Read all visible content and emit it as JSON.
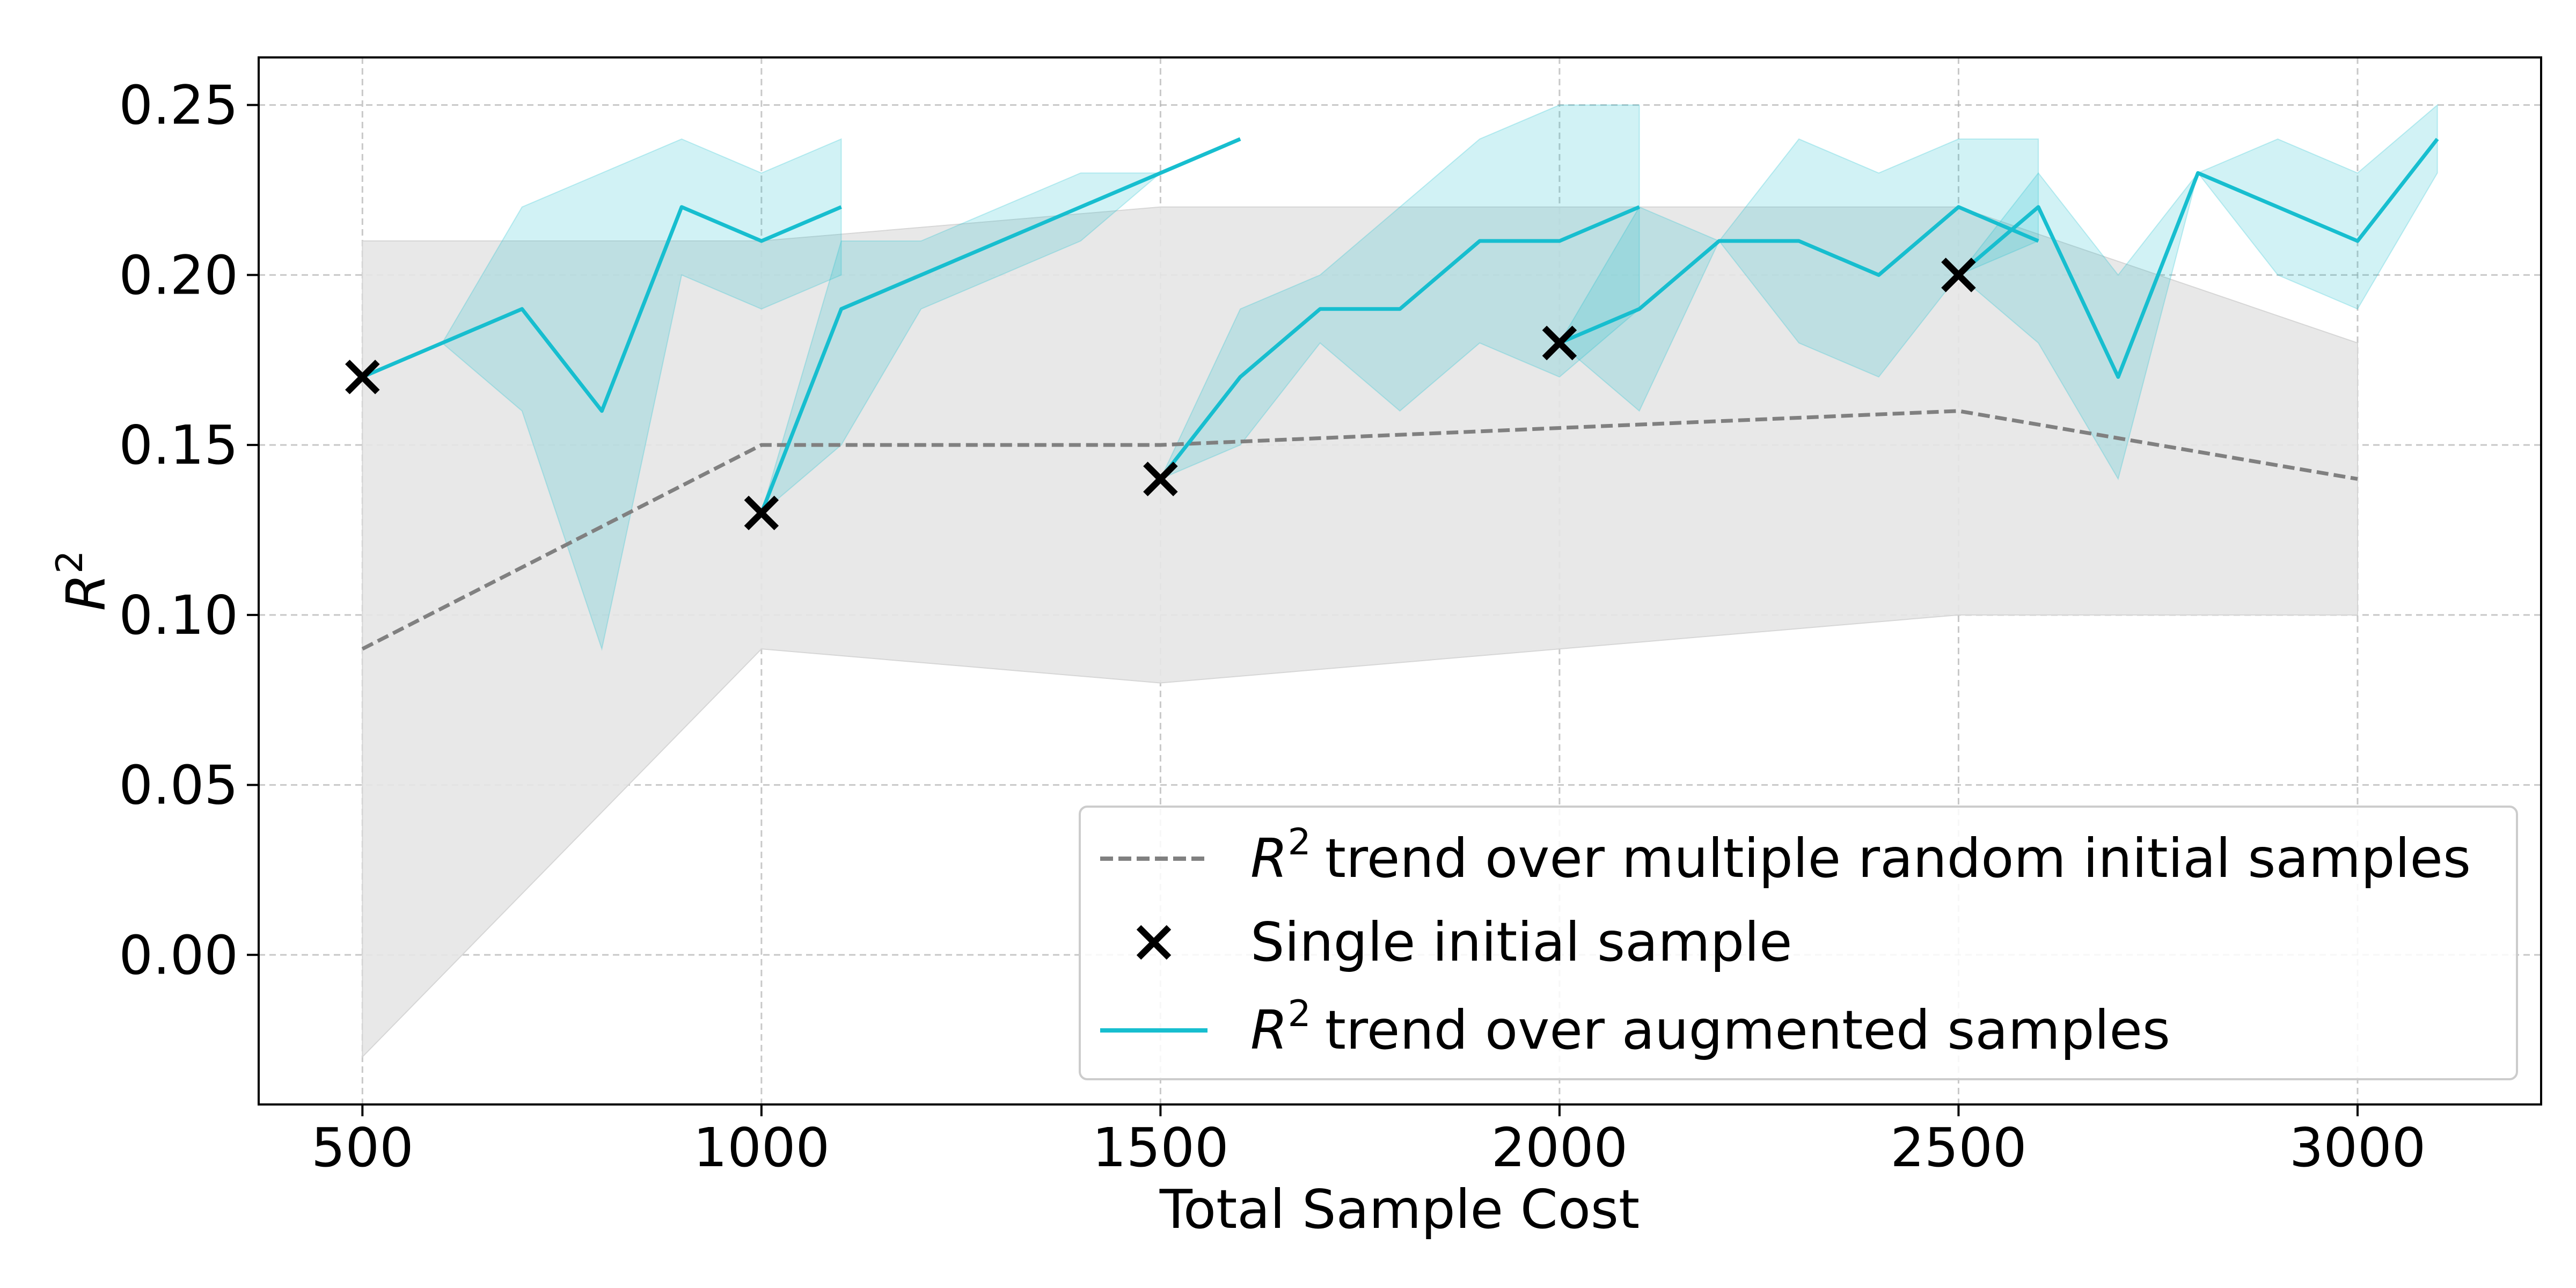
{
  "chart_data": {
    "type": "line",
    "xlabel": "Total Sample Cost",
    "ylabel": {
      "symbol": "R",
      "superscript": "2"
    },
    "xlim": [
      370,
      3230
    ],
    "ylim": [
      -0.044,
      0.264
    ],
    "xticks": [
      500,
      1000,
      1500,
      2000,
      2500,
      3000
    ],
    "yticks": [
      0.0,
      0.05,
      0.1,
      0.15,
      0.2,
      0.25
    ],
    "xtick_labels": [
      "500",
      "1000",
      "1500",
      "2000",
      "2500",
      "3000"
    ],
    "ytick_labels": [
      "0.00",
      "0.05",
      "0.10",
      "0.15",
      "0.20",
      "0.25"
    ],
    "grid": true,
    "legend_position": "lower-right",
    "legend": [
      {
        "symbol": "R",
        "superscript": "2",
        "text": "trend over multiple random initial samples"
      },
      {
        "text": "Single initial sample"
      },
      {
        "symbol": "R",
        "superscript": "2",
        "text": "trend over augmented samples"
      }
    ],
    "colors": {
      "random_trend": "#808080",
      "random_band": "#e6e6e6",
      "augmented": "#17becf",
      "augmented_band": "#cfeff3",
      "marker": "#000000"
    },
    "random_trend": {
      "x": [
        500,
        1000,
        1500,
        2000,
        2500,
        3000
      ],
      "y": [
        0.09,
        0.15,
        0.15,
        0.155,
        0.16,
        0.14
      ],
      "band_lower": [
        -0.03,
        0.09,
        0.08,
        0.09,
        0.1,
        0.1
      ],
      "band_upper": [
        0.21,
        0.21,
        0.22,
        0.22,
        0.22,
        0.18
      ]
    },
    "initial_samples": {
      "x": [
        500,
        1000,
        1500,
        2000,
        2500
      ],
      "y": [
        0.17,
        0.13,
        0.14,
        0.18,
        0.2
      ]
    },
    "augmented_runs": [
      {
        "x": [
          500,
          600,
          700,
          800,
          900,
          1000,
          1100
        ],
        "y": [
          0.17,
          0.18,
          0.19,
          0.16,
          0.22,
          0.21,
          0.22
        ],
        "lower": [
          0.17,
          0.18,
          0.16,
          0.09,
          0.2,
          0.19,
          0.2
        ],
        "upper": [
          0.17,
          0.18,
          0.22,
          0.23,
          0.24,
          0.23,
          0.24
        ]
      },
      {
        "x": [
          1000,
          1100,
          1200,
          1300,
          1400,
          1500,
          1600
        ],
        "y": [
          0.13,
          0.19,
          0.2,
          0.21,
          0.22,
          0.23,
          0.24
        ],
        "lower": [
          0.13,
          0.15,
          0.19,
          0.2,
          0.21,
          0.23,
          0.24
        ],
        "upper": [
          0.13,
          0.21,
          0.21,
          0.22,
          0.23,
          0.23,
          0.24
        ]
      },
      {
        "x": [
          1500,
          1600,
          1700,
          1800,
          1900,
          2000,
          2100
        ],
        "y": [
          0.14,
          0.17,
          0.19,
          0.19,
          0.21,
          0.21,
          0.22
        ],
        "lower": [
          0.14,
          0.15,
          0.18,
          0.16,
          0.18,
          0.17,
          0.19
        ],
        "upper": [
          0.14,
          0.19,
          0.2,
          0.22,
          0.24,
          0.25,
          0.25
        ]
      },
      {
        "x": [
          2000,
          2100,
          2200,
          2300,
          2400,
          2500,
          2600
        ],
        "y": [
          0.18,
          0.19,
          0.21,
          0.21,
          0.2,
          0.22,
          0.21
        ],
        "lower": [
          0.18,
          0.16,
          0.21,
          0.18,
          0.17,
          0.2,
          0.21
        ],
        "upper": [
          0.18,
          0.22,
          0.21,
          0.24,
          0.23,
          0.24,
          0.24
        ]
      },
      {
        "x": [
          2500,
          2600,
          2700,
          2800,
          2900,
          3000,
          3100
        ],
        "y": [
          0.2,
          0.22,
          0.17,
          0.23,
          0.22,
          0.21,
          0.24
        ],
        "lower": [
          0.2,
          0.18,
          0.14,
          0.23,
          0.2,
          0.19,
          0.23
        ],
        "upper": [
          0.2,
          0.23,
          0.2,
          0.23,
          0.24,
          0.23,
          0.25
        ]
      }
    ]
  }
}
